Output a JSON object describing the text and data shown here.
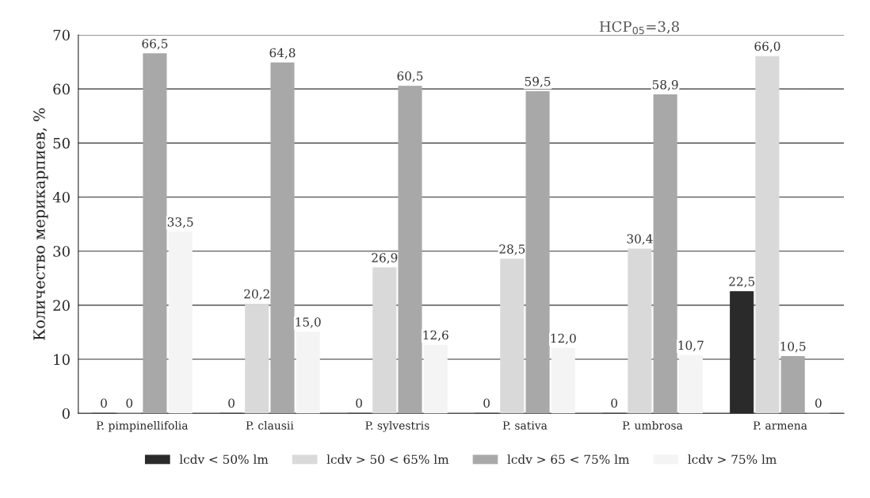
{
  "chart_data": {
    "type": "bar",
    "ylabel": "Количество мерикарпиев, %",
    "categories": [
      "P. pimpinellifolia",
      "P. clausii",
      "P. sylvestris",
      "P. sativa",
      "P. umbrosa",
      "P. armena"
    ],
    "series": [
      {
        "name": "lcdv < 50% lm",
        "color": "#2a2a2a",
        "values": [
          0,
          0,
          0,
          0,
          0,
          22.5
        ],
        "value_labels": [
          "0",
          "0",
          "0",
          "0",
          "0",
          "22,5"
        ]
      },
      {
        "name": "lcdv > 50 < 65% lm",
        "color": "#d9d9d9",
        "values": [
          0,
          20.2,
          26.9,
          28.5,
          30.4,
          66.0
        ],
        "value_labels": [
          "0",
          "20,2",
          "26,9",
          "28,5",
          "30,4",
          "66,0"
        ]
      },
      {
        "name": "lcdv > 65 < 75% lm",
        "color": "#a8a8a8",
        "values": [
          66.5,
          64.8,
          60.5,
          59.5,
          58.9,
          10.5
        ],
        "value_labels": [
          "66,5",
          "64,8",
          "60,5",
          "59,5",
          "58,9",
          "10,5"
        ]
      },
      {
        "name": "lcdv > 75% lm",
        "color": "#f4f4f4",
        "values": [
          33.5,
          15.0,
          12.6,
          12.0,
          10.7,
          0
        ],
        "value_labels": [
          "33,5",
          "15,0",
          "12,6",
          "12,0",
          "10,7",
          "0"
        ]
      }
    ],
    "ylim": [
      0,
      70
    ],
    "yticks": [
      0,
      10,
      20,
      30,
      40,
      50,
      60,
      70
    ],
    "grid": "y",
    "legend": "bottom",
    "annotations": [
      "НСР$_{05}$=3,8"
    ]
  }
}
